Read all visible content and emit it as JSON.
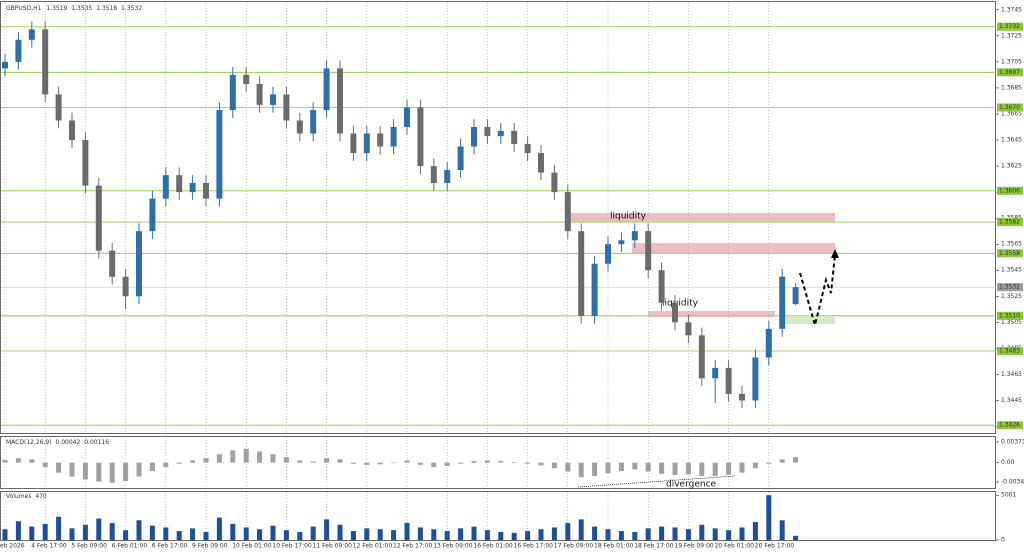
{
  "chart_data": [
    {
      "type": "candlestick",
      "symbol": "GBPUSD,H1",
      "categories": [
        "4 Feb 2026",
        null,
        null,
        "4 Feb 17:00",
        null,
        null,
        "5 Feb 09:00",
        null,
        null,
        "6 Feb 01:00",
        null,
        null,
        "6 Feb 17:00",
        null,
        null,
        "9 Feb 09:00",
        null,
        null,
        "10 Feb 01:00",
        null,
        null,
        "10 Feb 17:00",
        null,
        null,
        "11 Feb 09:00",
        null,
        null,
        "12 Feb 01:00",
        null,
        null,
        "12 Feb 17:00",
        null,
        null,
        "13 Feb 09:00",
        null,
        null,
        "16 Feb 01:00",
        null,
        null,
        "16 Feb 17:00",
        null,
        null,
        "17 Feb 09:00",
        null,
        null,
        "18 Feb 01:00",
        null,
        null,
        "18 Feb 17:00",
        null,
        null,
        "19 Feb 09:00",
        null,
        null,
        "20 Feb 01:00",
        null,
        null,
        "20 Feb 17:00",
        null,
        null
      ],
      "open": [
        1.37,
        1.3705,
        1.3722,
        1.373,
        1.368,
        1.366,
        1.3645,
        1.361,
        1.356,
        1.354,
        1.3525,
        1.3575,
        1.36,
        1.3618,
        1.3605,
        1.3612,
        1.36,
        1.3668,
        1.3695,
        1.3688,
        1.3672,
        1.368,
        1.366,
        1.365,
        1.3668,
        1.37,
        1.365,
        1.3635,
        1.365,
        1.364,
        1.3655,
        1.367,
        1.3625,
        1.3612,
        1.3622,
        1.364,
        1.3655,
        1.3648,
        1.3652,
        1.3642,
        1.3635,
        1.362,
        1.3605,
        1.3575,
        1.351,
        1.355,
        1.3565,
        1.3568,
        1.3575,
        1.3545,
        1.352,
        1.3505,
        1.3495,
        1.3462,
        1.347,
        1.345,
        1.3445,
        1.3478,
        1.35,
        1.3519
      ],
      "high": [
        1.3711,
        1.3728,
        1.3736,
        1.3736,
        1.3686,
        1.3666,
        1.3651,
        1.3616,
        1.3566,
        1.3546,
        1.3581,
        1.3606,
        1.3624,
        1.3624,
        1.3618,
        1.3618,
        1.3674,
        1.3701,
        1.3701,
        1.3694,
        1.3686,
        1.3686,
        1.3666,
        1.3674,
        1.3706,
        1.3706,
        1.3656,
        1.3656,
        1.3656,
        1.3661,
        1.3676,
        1.3676,
        1.3631,
        1.3628,
        1.3646,
        1.3661,
        1.3661,
        1.3658,
        1.3658,
        1.3648,
        1.3641,
        1.3626,
        1.3611,
        1.3581,
        1.3556,
        1.3571,
        1.3574,
        1.3581,
        1.3581,
        1.3551,
        1.3526,
        1.3511,
        1.3501,
        1.3476,
        1.3476,
        1.3456,
        1.3484,
        1.3506,
        1.3546,
        1.3535
      ],
      "low": [
        1.3694,
        1.3699,
        1.3716,
        1.3674,
        1.3654,
        1.3639,
        1.3604,
        1.3554,
        1.3534,
        1.3515,
        1.3519,
        1.3569,
        1.3594,
        1.3599,
        1.3599,
        1.3594,
        1.3594,
        1.3662,
        1.3682,
        1.3666,
        1.3666,
        1.3654,
        1.3644,
        1.3644,
        1.3662,
        1.3644,
        1.3629,
        1.3629,
        1.3634,
        1.3634,
        1.3649,
        1.3619,
        1.3606,
        1.3606,
        1.3616,
        1.3634,
        1.3642,
        1.3642,
        1.3636,
        1.3629,
        1.3614,
        1.3599,
        1.3569,
        1.3504,
        1.3504,
        1.3544,
        1.3559,
        1.3562,
        1.3539,
        1.3514,
        1.3499,
        1.3489,
        1.3456,
        1.3443,
        1.3444,
        1.3439,
        1.3439,
        1.3472,
        1.3494,
        1.3518
      ],
      "close": [
        1.3705,
        1.3722,
        1.373,
        1.368,
        1.366,
        1.3645,
        1.361,
        1.356,
        1.354,
        1.3525,
        1.3575,
        1.36,
        1.3618,
        1.3605,
        1.3612,
        1.36,
        1.3668,
        1.3695,
        1.3688,
        1.3672,
        1.368,
        1.366,
        1.365,
        1.3668,
        1.37,
        1.365,
        1.3635,
        1.365,
        1.364,
        1.3655,
        1.367,
        1.3625,
        1.3612,
        1.3622,
        1.364,
        1.3655,
        1.3648,
        1.3652,
        1.3642,
        1.3635,
        1.362,
        1.3605,
        1.3575,
        1.351,
        1.355,
        1.3565,
        1.3568,
        1.3575,
        1.3545,
        1.352,
        1.3505,
        1.3495,
        1.3462,
        1.347,
        1.345,
        1.3445,
        1.3478,
        1.35,
        1.354,
        1.3532
      ],
      "colors": {
        "up": "#2f6fa8",
        "down": "#6b6b6b"
      },
      "ylim": [
        1.342,
        1.3751
      ],
      "yticks": [
        1.3745,
        1.3725,
        1.3705,
        1.3685,
        1.3665,
        1.3645,
        1.3625,
        1.3605,
        1.3585,
        1.3565,
        1.3545,
        1.3525,
        1.3505,
        1.3485,
        1.3465,
        1.3445,
        1.3425
      ],
      "levels": [
        1.3732,
        1.3697,
        {
          "value": 1.367,
          "label": "1.3670"
        },
        1.3606,
        1.3582,
        1.3558,
        {
          "value": 1.351,
          "label": "1.3510"
        },
        1.3483,
        1.3426
      ],
      "level_color": "#8cc43c",
      "current_price": 1.3532,
      "annotations": [
        "liquidity",
        "liquidity",
        "divergence"
      ]
    },
    {
      "type": "bar",
      "title": "MACD(12,26,9)",
      "main": 0.00042,
      "signal": 0.00116,
      "color": "#a0a0a0",
      "values": [
        0.0005,
        0.0008,
        0.0006,
        -0.0008,
        -0.0018,
        -0.0025,
        -0.003,
        -0.0034,
        -0.0036,
        -0.0033,
        -0.0025,
        -0.0015,
        -0.0008,
        -0.0002,
        0.0004,
        0.0008,
        0.0015,
        0.0022,
        0.0025,
        0.002,
        0.0015,
        0.001,
        0.0004,
        0.0002,
        0.0008,
        0.0006,
        -0.0002,
        -0.0004,
        -0.0003,
        0,
        0.0004,
        -0.0004,
        -0.0008,
        -0.0006,
        -0.0002,
        0.0003,
        0.0004,
        0.0003,
        0.0001,
        -0.0002,
        -0.0005,
        -0.001,
        -0.0016,
        -0.0026,
        -0.0024,
        -0.0019,
        -0.0015,
        -0.0012,
        -0.0016,
        -0.002,
        -0.0022,
        -0.0021,
        -0.0024,
        -0.0024,
        -0.0022,
        -0.0018,
        -0.001,
        -0.0002,
        0.0006,
        0.001
      ],
      "ylim": [
        -0.00455,
        0.0046
      ],
      "yticks": [
        0.00371,
        {
          "value": 0,
          "label": "0.00"
        },
        -0.00347
      ]
    },
    {
      "type": "bar",
      "title": "Volumes",
      "last": 470,
      "color": "#1f4e9c",
      "values": [
        1200,
        2100,
        1500,
        1800,
        2600,
        1300,
        1700,
        2400,
        1900,
        1100,
        2200,
        1600,
        1400,
        1000,
        1300,
        900,
        2500,
        1800,
        1400,
        1200,
        1600,
        1100,
        900,
        1500,
        2300,
        1700,
        1000,
        1300,
        1200,
        1100,
        1900,
        1400,
        1200,
        1000,
        1300,
        1500,
        1100,
        900,
        800,
        1000,
        1200,
        1400,
        1900,
        2300,
        1500,
        1200,
        1000,
        900,
        1300,
        1500,
        1400,
        1200,
        1700,
        1300,
        1100,
        1400,
        2000,
        5001,
        2200,
        470
      ],
      "ylim": [
        0,
        5360
      ],
      "yticks": [
        5001,
        0
      ]
    }
  ]
}
